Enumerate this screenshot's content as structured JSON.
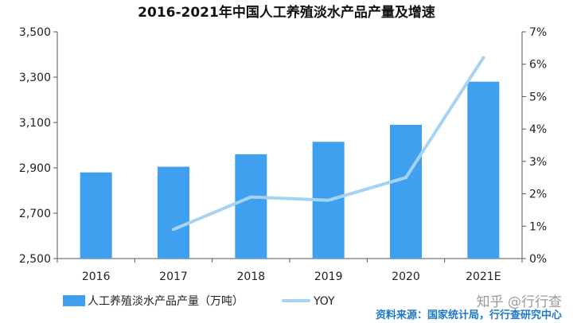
{
  "chart_data": {
    "type": "bar+line",
    "title": "2016-2021年中国人工养殖淡水产品产量及增速",
    "categories": [
      "2016",
      "2017",
      "2018",
      "2019",
      "2020",
      "2021E"
    ],
    "series": [
      {
        "name": "人工养殖淡水产品产量（万吨）",
        "type": "bar",
        "axis": "left",
        "color": "#3fa0f0",
        "values": [
          2880,
          2905,
          2960,
          3015,
          3090,
          3280
        ]
      },
      {
        "name": "YOY",
        "type": "line",
        "axis": "right",
        "color": "#a6d2f4",
        "values": [
          null,
          0.9,
          1.9,
          1.8,
          2.5,
          6.2
        ]
      }
    ],
    "left_axis": {
      "ylim": [
        2500,
        3500
      ],
      "ticks": [
        2500,
        2700,
        2900,
        3100,
        3300,
        3500
      ],
      "tick_labels": [
        "2,500",
        "2,700",
        "2,900",
        "3,100",
        "3,300",
        "3,500"
      ]
    },
    "right_axis": {
      "ylim": [
        0,
        7
      ],
      "ticks": [
        0,
        1,
        2,
        3,
        4,
        5,
        6,
        7
      ],
      "tick_labels": [
        "0%",
        "1%",
        "2%",
        "3%",
        "4%",
        "5%",
        "6%",
        "7%"
      ]
    },
    "grid": false,
    "legend_position": "bottom-left"
  },
  "source_text": "资料来源：国家统计局，行行查研究中心",
  "watermark_text": "知乎 @行行查"
}
